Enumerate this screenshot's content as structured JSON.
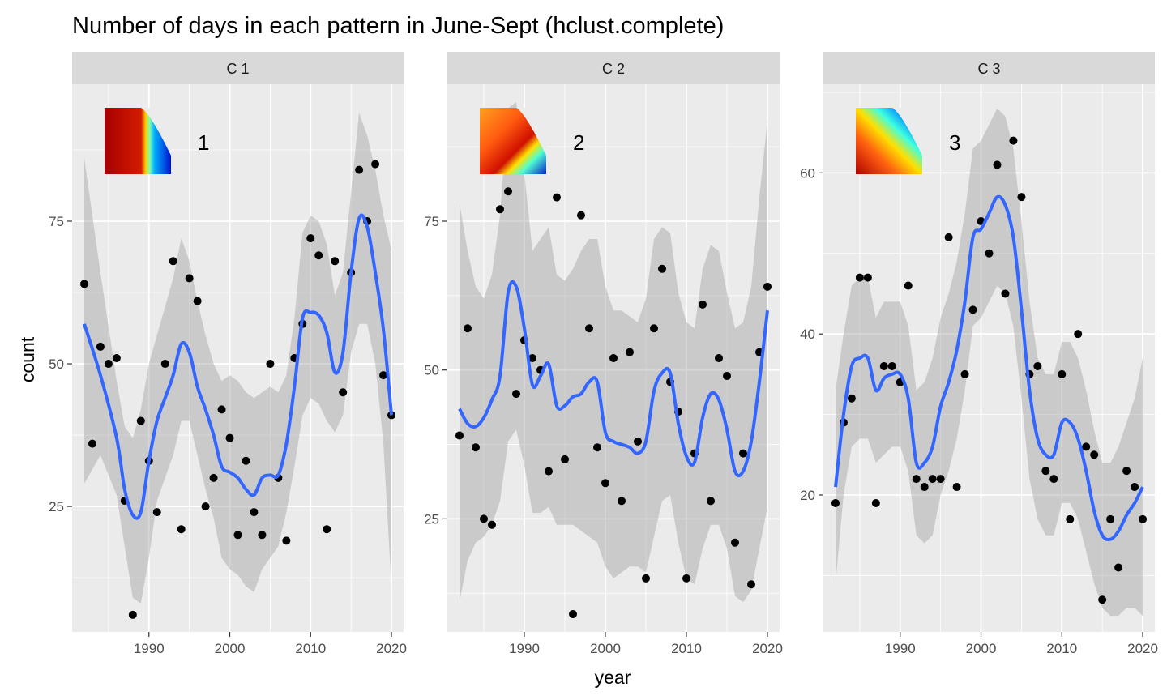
{
  "chart_data": {
    "type": "scatter",
    "title": "Number of days in each pattern in June-Sept (hclust.complete)",
    "xlabel": "year",
    "ylabel": "count",
    "grid": true,
    "smoother": "loess with confidence band",
    "colors": {
      "point": "#000000",
      "smooth_line": "#3366FF",
      "confidence_band": "#999999",
      "panel_background": "#EBEBEB",
      "strip_background": "#D9D9D9",
      "grid": "#FFFFFF"
    },
    "facets": [
      {
        "strip_label": "C 1",
        "pattern_label": "1",
        "xlim": [
          1980.5,
          2021.5
        ],
        "ylim": [
          3,
          99
        ],
        "x_ticks": [
          1990,
          2000,
          2010,
          2020
        ],
        "y_ticks": [
          25,
          50,
          75
        ],
        "points": {
          "x": [
            1982,
            1983,
            1984,
            1985,
            1986,
            1987,
            1988,
            1989,
            1990,
            1991,
            1992,
            1993,
            1994,
            1995,
            1996,
            1997,
            1998,
            1999,
            2000,
            2001,
            2002,
            2003,
            2004,
            2005,
            2006,
            2007,
            2008,
            2009,
            2010,
            2011,
            2012,
            2013,
            2014,
            2015,
            2016,
            2017,
            2018,
            2019,
            2020
          ],
          "y": [
            64,
            36,
            53,
            50,
            51,
            26,
            6,
            40,
            33,
            24,
            50,
            68,
            21,
            65,
            61,
            25,
            30,
            42,
            37,
            20,
            33,
            24,
            20,
            50,
            30,
            19,
            51,
            57,
            72,
            69,
            21,
            68,
            45,
            66,
            84,
            75,
            85,
            48,
            41
          ]
        },
        "smooth": {
          "x": [
            1982,
            1984,
            1986,
            1987,
            1988,
            1989,
            1990,
            1991,
            1992,
            1993,
            1994,
            1995,
            1996,
            1997,
            1998,
            1999,
            2000,
            2001,
            2002,
            2003,
            2004,
            2005,
            2006,
            2007,
            2008,
            2009,
            2010,
            2011,
            2012,
            2013,
            2014,
            2015,
            2016,
            2017,
            2018,
            2019,
            2020
          ],
          "y": [
            57,
            48,
            37,
            28,
            23.5,
            24,
            33,
            40,
            44,
            48,
            53.5,
            52,
            46,
            42,
            37.5,
            32,
            31,
            30,
            28,
            27,
            30,
            30.5,
            30.5,
            36,
            46,
            58,
            59,
            58.5,
            55.5,
            48.5,
            52,
            66,
            75.5,
            74,
            66,
            56,
            41
          ],
          "lower": [
            29,
            34,
            27,
            18,
            9,
            8,
            16,
            26,
            30,
            34,
            40,
            40,
            34,
            28,
            23,
            16,
            14,
            13,
            11,
            10,
            14,
            16,
            18,
            24,
            32,
            41,
            44,
            43,
            40,
            38,
            41,
            52,
            57,
            57,
            50,
            36,
            11
          ],
          "upper": [
            86,
            66,
            47,
            39,
            37,
            42,
            50,
            55,
            60,
            65,
            72,
            68,
            61,
            55,
            50,
            47,
            48,
            47,
            45,
            44,
            45,
            46,
            45,
            48,
            58,
            73,
            76,
            75,
            71,
            62,
            66,
            80,
            94,
            90,
            84,
            76,
            70
          ]
        }
      },
      {
        "strip_label": "C 2",
        "pattern_label": "2",
        "xlim": [
          1980.5,
          2021.5
        ],
        "ylim": [
          6,
          98
        ],
        "x_ticks": [
          1990,
          2000,
          2010,
          2020
        ],
        "y_ticks": [
          25,
          50,
          75
        ],
        "points": {
          "x": [
            1982,
            1983,
            1984,
            1985,
            1986,
            1987,
            1988,
            1989,
            1990,
            1991,
            1992,
            1993,
            1994,
            1995,
            1996,
            1997,
            1998,
            1999,
            2000,
            2001,
            2002,
            2003,
            2004,
            2005,
            2006,
            2007,
            2008,
            2009,
            2010,
            2011,
            2012,
            2013,
            2014,
            2015,
            2016,
            2017,
            2018,
            2019,
            2020
          ],
          "y": [
            39,
            57,
            37,
            25,
            24,
            77,
            80,
            46,
            55,
            52,
            50,
            33,
            79,
            35,
            9,
            76,
            57,
            37,
            31,
            52,
            28,
            53,
            38,
            15,
            57,
            67,
            48,
            43,
            15,
            36,
            61,
            28,
            52,
            49,
            21,
            36,
            14,
            53,
            64
          ]
        },
        "smooth": {
          "x": [
            1982,
            1983,
            1984,
            1985,
            1986,
            1987,
            1988,
            1989,
            1990,
            1991,
            1992,
            1993,
            1994,
            1995,
            1996,
            1997,
            1998,
            1999,
            2000,
            2001,
            2002,
            2003,
            2004,
            2005,
            2006,
            2007,
            2008,
            2009,
            2010,
            2011,
            2012,
            2013,
            2014,
            2015,
            2016,
            2017,
            2018,
            2019,
            2020
          ],
          "y": [
            43.5,
            41,
            40.5,
            42,
            45,
            49,
            63,
            64,
            57,
            47.5,
            49,
            51,
            44,
            44,
            45.5,
            46,
            48,
            48,
            39.5,
            38,
            37.5,
            37,
            36,
            38,
            46.5,
            49.5,
            49.5,
            41,
            35.5,
            34.5,
            42,
            46,
            45,
            40,
            33,
            33,
            38,
            48,
            60
          ],
          "lower": [
            11,
            18,
            21,
            22,
            24,
            28,
            38,
            40,
            34,
            26,
            26,
            27,
            24,
            24,
            24,
            23,
            22,
            21,
            17,
            15,
            16,
            17,
            17,
            16,
            22,
            28,
            29,
            21,
            15,
            14,
            20,
            24,
            24,
            20,
            12,
            11,
            13,
            20,
            27
          ],
          "upper": [
            78,
            70,
            64,
            62,
            66,
            76,
            94,
            95,
            83,
            70,
            72,
            74,
            66,
            65,
            67,
            70,
            72,
            72,
            64,
            60,
            60,
            59,
            58,
            62,
            72,
            74,
            73,
            63,
            58,
            57,
            67,
            71,
            70,
            63,
            57,
            58,
            64,
            79,
            92
          ]
        }
      },
      {
        "strip_label": "C 3",
        "pattern_label": "3",
        "xlim": [
          1980.5,
          2021.5
        ],
        "ylim": [
          3,
          71
        ],
        "x_ticks": [
          1990,
          2000,
          2010,
          2020
        ],
        "y_ticks": [
          20,
          40,
          60
        ],
        "points": {
          "x": [
            1982,
            1983,
            1984,
            1985,
            1986,
            1987,
            1988,
            1989,
            1990,
            1991,
            1992,
            1993,
            1994,
            1995,
            1996,
            1997,
            1998,
            1999,
            2000,
            2001,
            2002,
            2003,
            2004,
            2005,
            2006,
            2007,
            2008,
            2009,
            2010,
            2011,
            2012,
            2013,
            2014,
            2015,
            2016,
            2017,
            2018,
            2019,
            2020
          ],
          "y": [
            19,
            29,
            32,
            47,
            47,
            19,
            36,
            36,
            34,
            46,
            22,
            21,
            22,
            22,
            52,
            21,
            35,
            43,
            54,
            50,
            61,
            45,
            64,
            57,
            35,
            36,
            23,
            22,
            35,
            17,
            40,
            26,
            25,
            7,
            17,
            11,
            23,
            21,
            17
          ]
        },
        "smooth": {
          "x": [
            1982,
            1983,
            1984,
            1985,
            1986,
            1987,
            1988,
            1989,
            1990,
            1991,
            1992,
            1993,
            1994,
            1995,
            1996,
            1997,
            1998,
            1999,
            2000,
            2001,
            2002,
            2003,
            2004,
            2005,
            2006,
            2007,
            2008,
            2009,
            2010,
            2011,
            2012,
            2013,
            2014,
            2015,
            2016,
            2017,
            2018,
            2019,
            2020
          ],
          "y": [
            21,
            30,
            36,
            37,
            37,
            33,
            34.5,
            35,
            35,
            32,
            24,
            24,
            26,
            31,
            34,
            38,
            44,
            52,
            53,
            55,
            57,
            56,
            52,
            43,
            33,
            27,
            25,
            25,
            29,
            29,
            27,
            23,
            18,
            15,
            14.5,
            15.5,
            17.5,
            19,
            21
          ],
          "lower": [
            9,
            20,
            26,
            27,
            27,
            24,
            25,
            26,
            26,
            23,
            15,
            14,
            15,
            20,
            23,
            27,
            33,
            41,
            42,
            44,
            46,
            45,
            41,
            32,
            22,
            17,
            15,
            15,
            19,
            19,
            17,
            13,
            9,
            6,
            5,
            5,
            6,
            6,
            5
          ],
          "upper": [
            33,
            40,
            46,
            47,
            47,
            42,
            44,
            44,
            44,
            41,
            33,
            34,
            37,
            42,
            45,
            49,
            55,
            63,
            64,
            66,
            68,
            67,
            63,
            54,
            44,
            37,
            35,
            35,
            39,
            39,
            37,
            33,
            28,
            24,
            24,
            26,
            29,
            32,
            37
          ]
        }
      }
    ]
  }
}
